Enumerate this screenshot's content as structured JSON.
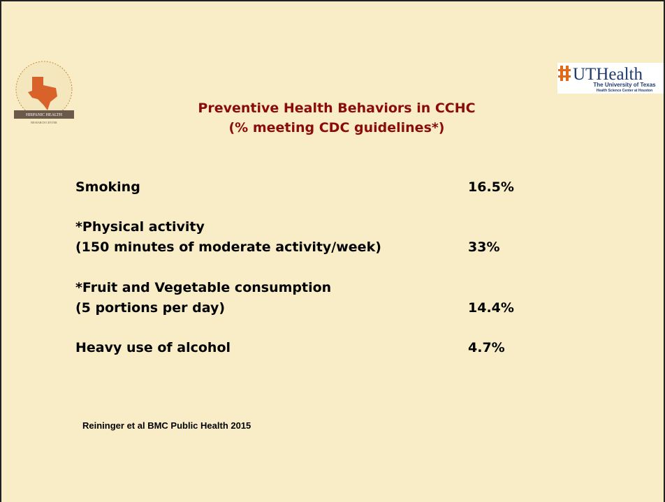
{
  "logos": {
    "left": {
      "line1": "HISPANIC HEALTH",
      "line2": "RESEARCH CENTER"
    },
    "right": {
      "name": "UTHealth",
      "line1": "The University of Texas",
      "line2": "Health Science Center at Houston"
    }
  },
  "title": {
    "line1": "Preventive Health Behaviors in CCHC",
    "line2": "(% meeting CDC guidelines*)"
  },
  "rows": [
    {
      "label": [
        "Smoking"
      ],
      "value": "16.5%"
    },
    {
      "label": [
        "*Physical activity",
        "(150 minutes of moderate activity/week)"
      ],
      "value": "33%"
    },
    {
      "label": [
        "*Fruit and Vegetable consumption",
        "(5 portions per day)"
      ],
      "value": "14.4%"
    },
    {
      "label": [
        "Heavy use of alcohol"
      ],
      "value": "4.7%"
    }
  ],
  "citation": "Reininger et al BMC Public Health 2015"
}
